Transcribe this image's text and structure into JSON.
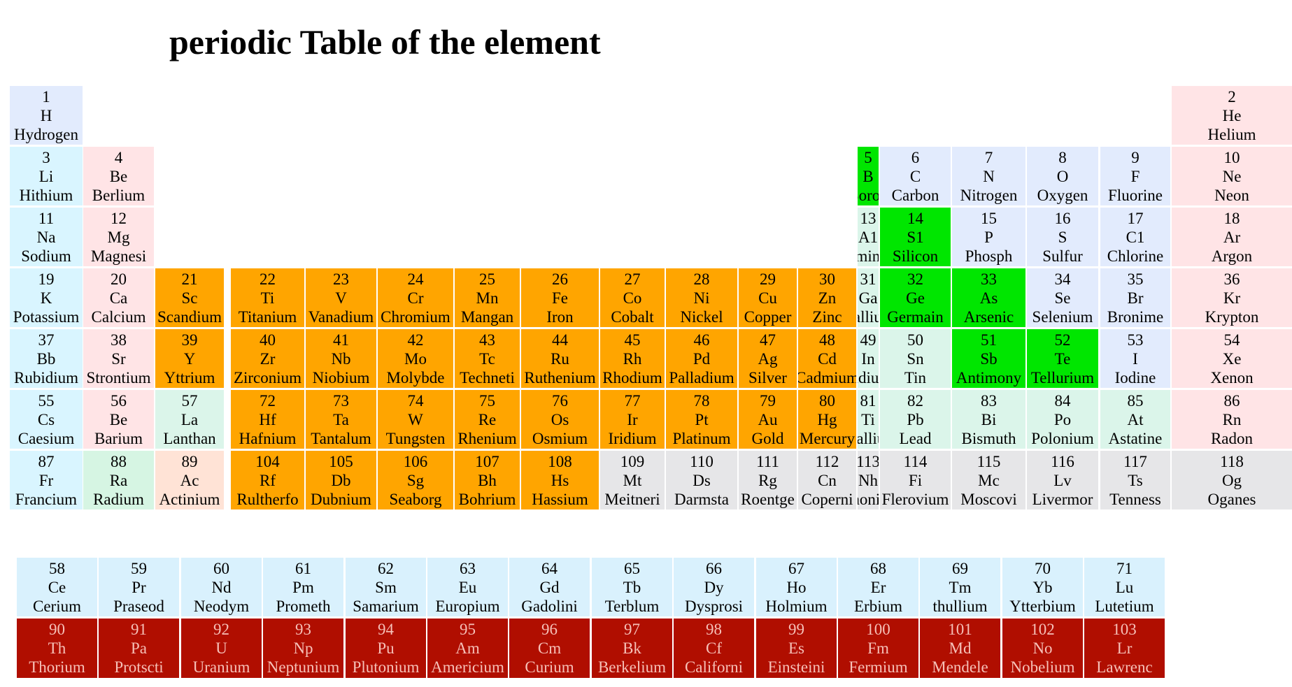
{
  "title": "periodic Table of the element",
  "colors": {
    "transition": "#ffa500",
    "metalloid": "#00e600",
    "alkali": "#d9f5ff",
    "alkaline_earth": "#ffe4e6",
    "nonmetal": "#e2ebfd",
    "noble_gas": "#ffe4e6",
    "post_transition": "#dbf5ea",
    "radium": "#d6f5e3",
    "lanthanum": "#dbf5ea",
    "actinium": "#ffe3d6",
    "unknown": "#e6e6e8",
    "lanthanide": "#d9f1fd",
    "actinide": "#b00e00"
  },
  "elements": [
    {
      "n": "1",
      "sym": "H",
      "name": "Hydrogen",
      "row": 1,
      "col": 1,
      "cat": "nonmetal"
    },
    {
      "n": "2",
      "sym": "He",
      "name": "Helium",
      "row": 1,
      "col": 18,
      "cat": "noble_gas"
    },
    {
      "n": "3",
      "sym": "Li",
      "name": "Hithium",
      "row": 2,
      "col": 1,
      "cat": "alkali"
    },
    {
      "n": "4",
      "sym": "Be",
      "name": "Berlium",
      "row": 2,
      "col": 2,
      "cat": "alkaline_earth"
    },
    {
      "n": "5",
      "sym": "B",
      "name": "Boron",
      "row": 2,
      "col": 13,
      "cat": "metalloid"
    },
    {
      "n": "6",
      "sym": "C",
      "name": "Carbon",
      "row": 2,
      "col": 14,
      "cat": "nonmetal"
    },
    {
      "n": "7",
      "sym": "N",
      "name": "Nitrogen",
      "row": 2,
      "col": 15,
      "cat": "nonmetal"
    },
    {
      "n": "8",
      "sym": "O",
      "name": "Oxygen",
      "row": 2,
      "col": 16,
      "cat": "nonmetal"
    },
    {
      "n": "9",
      "sym": "F",
      "name": "Fluorine",
      "row": 2,
      "col": 17,
      "cat": "nonmetal"
    },
    {
      "n": "10",
      "sym": "Ne",
      "name": "Neon",
      "row": 2,
      "col": 18,
      "cat": "noble_gas"
    },
    {
      "n": "11",
      "sym": "Na",
      "name": "Sodium",
      "row": 3,
      "col": 1,
      "cat": "alkali"
    },
    {
      "n": "12",
      "sym": "Mg",
      "name": "Magnesi",
      "row": 3,
      "col": 2,
      "cat": "alkaline_earth"
    },
    {
      "n": "13",
      "sym": "A1",
      "name": "Aluminium",
      "row": 3,
      "col": 13,
      "cat": "post_transition"
    },
    {
      "n": "14",
      "sym": "S1",
      "name": "Silicon",
      "row": 3,
      "col": 14,
      "cat": "metalloid"
    },
    {
      "n": "15",
      "sym": "P",
      "name": "Phosph",
      "row": 3,
      "col": 15,
      "cat": "nonmetal"
    },
    {
      "n": "16",
      "sym": "S",
      "name": "Sulfur",
      "row": 3,
      "col": 16,
      "cat": "nonmetal"
    },
    {
      "n": "17",
      "sym": "C1",
      "name": "Chlorine",
      "row": 3,
      "col": 17,
      "cat": "nonmetal"
    },
    {
      "n": "18",
      "sym": "Ar",
      "name": "Argon",
      "row": 3,
      "col": 18,
      "cat": "noble_gas"
    },
    {
      "n": "19",
      "sym": "K",
      "name": "Potassium",
      "row": 4,
      "col": 1,
      "cat": "alkali"
    },
    {
      "n": "20",
      "sym": "Ca",
      "name": "Calcium",
      "row": 4,
      "col": 2,
      "cat": "alkaline_earth"
    },
    {
      "n": "21",
      "sym": "Sc",
      "name": "Scandium",
      "row": 4,
      "col": 3,
      "cat": "transition"
    },
    {
      "n": "22",
      "sym": "Ti",
      "name": "Titanium",
      "row": 4,
      "col": 4,
      "cat": "transition"
    },
    {
      "n": "23",
      "sym": "V",
      "name": "Vanadium",
      "row": 4,
      "col": 5,
      "cat": "transition"
    },
    {
      "n": "24",
      "sym": "Cr",
      "name": "Chromium",
      "row": 4,
      "col": 6,
      "cat": "transition"
    },
    {
      "n": "25",
      "sym": "Mn",
      "name": "Mangan",
      "row": 4,
      "col": 7,
      "cat": "transition"
    },
    {
      "n": "26",
      "sym": "Fe",
      "name": "Iron",
      "row": 4,
      "col": 8,
      "cat": "transition"
    },
    {
      "n": "27",
      "sym": "Co",
      "name": "Cobalt",
      "row": 4,
      "col": 9,
      "cat": "transition"
    },
    {
      "n": "28",
      "sym": "Ni",
      "name": "Nickel",
      "row": 4,
      "col": 10,
      "cat": "transition"
    },
    {
      "n": "29",
      "sym": "Cu",
      "name": "Copper",
      "row": 4,
      "col": 11,
      "cat": "transition"
    },
    {
      "n": "30",
      "sym": "Zn",
      "name": "Zinc",
      "row": 4,
      "col": 12,
      "cat": "transition"
    },
    {
      "n": "31",
      "sym": "Ga",
      "name": "Gallium",
      "row": 4,
      "col": 13,
      "cat": "post_transition"
    },
    {
      "n": "32",
      "sym": "Ge",
      "name": "Germain",
      "row": 4,
      "col": 14,
      "cat": "metalloid"
    },
    {
      "n": "33",
      "sym": "As",
      "name": "Arsenic",
      "row": 4,
      "col": 15,
      "cat": "metalloid"
    },
    {
      "n": "34",
      "sym": "Se",
      "name": "Selenium",
      "row": 4,
      "col": 16,
      "cat": "nonmetal"
    },
    {
      "n": "35",
      "sym": "Br",
      "name": "Bronime",
      "row": 4,
      "col": 17,
      "cat": "nonmetal"
    },
    {
      "n": "36",
      "sym": "Kr",
      "name": "Krypton",
      "row": 4,
      "col": 18,
      "cat": "noble_gas"
    },
    {
      "n": "37",
      "sym": "Bb",
      "name": "Rubidium",
      "row": 5,
      "col": 1,
      "cat": "alkali"
    },
    {
      "n": "38",
      "sym": "Sr",
      "name": "Strontium",
      "row": 5,
      "col": 2,
      "cat": "alkaline_earth"
    },
    {
      "n": "39",
      "sym": "Y",
      "name": "Yttrium",
      "row": 5,
      "col": 3,
      "cat": "transition"
    },
    {
      "n": "40",
      "sym": "Zr",
      "name": "Zirconium",
      "row": 5,
      "col": 4,
      "cat": "transition"
    },
    {
      "n": "41",
      "sym": "Nb",
      "name": "Niobium",
      "row": 5,
      "col": 5,
      "cat": "transition"
    },
    {
      "n": "42",
      "sym": "Mo",
      "name": "Molybde",
      "row": 5,
      "col": 6,
      "cat": "transition"
    },
    {
      "n": "43",
      "sym": "Tc",
      "name": "Techneti",
      "row": 5,
      "col": 7,
      "cat": "transition"
    },
    {
      "n": "44",
      "sym": "Ru",
      "name": "Ruthenium",
      "row": 5,
      "col": 8,
      "cat": "transition"
    },
    {
      "n": "45",
      "sym": "Rh",
      "name": "Rhodium",
      "row": 5,
      "col": 9,
      "cat": "transition"
    },
    {
      "n": "46",
      "sym": "Pd",
      "name": "Palladium",
      "row": 5,
      "col": 10,
      "cat": "transition"
    },
    {
      "n": "47",
      "sym": "Ag",
      "name": "Silver",
      "row": 5,
      "col": 11,
      "cat": "transition"
    },
    {
      "n": "48",
      "sym": "Cd",
      "name": "Cadmium",
      "row": 5,
      "col": 12,
      "cat": "transition"
    },
    {
      "n": "49",
      "sym": "In",
      "name": "Indium",
      "row": 5,
      "col": 13,
      "cat": "post_transition"
    },
    {
      "n": "50",
      "sym": "Sn",
      "name": "Tin",
      "row": 5,
      "col": 14,
      "cat": "post_transition"
    },
    {
      "n": "51",
      "sym": "Sb",
      "name": "Antimony",
      "row": 5,
      "col": 15,
      "cat": "metalloid"
    },
    {
      "n": "52",
      "sym": "Te",
      "name": "Tellurium",
      "row": 5,
      "col": 16,
      "cat": "metalloid"
    },
    {
      "n": "53",
      "sym": "I",
      "name": "Iodine",
      "row": 5,
      "col": 17,
      "cat": "nonmetal"
    },
    {
      "n": "54",
      "sym": "Xe",
      "name": "Xenon",
      "row": 5,
      "col": 18,
      "cat": "noble_gas"
    },
    {
      "n": "55",
      "sym": "Cs",
      "name": "Caesium",
      "row": 6,
      "col": 1,
      "cat": "alkali"
    },
    {
      "n": "56",
      "sym": "Be",
      "name": "Barium",
      "row": 6,
      "col": 2,
      "cat": "alkaline_earth"
    },
    {
      "n": "57",
      "sym": "La",
      "name": "Lanthan",
      "row": 6,
      "col": 3,
      "cat": "lanthanum"
    },
    {
      "n": "72",
      "sym": "Hf",
      "name": "Hafnium",
      "row": 6,
      "col": 4,
      "cat": "transition"
    },
    {
      "n": "73",
      "sym": "Ta",
      "name": "Tantalum",
      "row": 6,
      "col": 5,
      "cat": "transition"
    },
    {
      "n": "74",
      "sym": "W",
      "name": "Tungsten",
      "row": 6,
      "col": 6,
      "cat": "transition"
    },
    {
      "n": "75",
      "sym": "Re",
      "name": "Rhenium",
      "row": 6,
      "col": 7,
      "cat": "transition"
    },
    {
      "n": "76",
      "sym": "Os",
      "name": "Osmium",
      "row": 6,
      "col": 8,
      "cat": "transition"
    },
    {
      "n": "77",
      "sym": "Ir",
      "name": "Iridium",
      "row": 6,
      "col": 9,
      "cat": "transition"
    },
    {
      "n": "78",
      "sym": "Pt",
      "name": "Platinum",
      "row": 6,
      "col": 10,
      "cat": "transition"
    },
    {
      "n": "79",
      "sym": "Au",
      "name": "Gold",
      "row": 6,
      "col": 11,
      "cat": "transition"
    },
    {
      "n": "80",
      "sym": "Hg",
      "name": "Mercury",
      "row": 6,
      "col": 12,
      "cat": "transition"
    },
    {
      "n": "81",
      "sym": "Ti",
      "name": "Thallium",
      "row": 6,
      "col": 13,
      "cat": "post_transition"
    },
    {
      "n": "82",
      "sym": "Pb",
      "name": "Lead",
      "row": 6,
      "col": 14,
      "cat": "post_transition"
    },
    {
      "n": "83",
      "sym": "Bi",
      "name": "Bismuth",
      "row": 6,
      "col": 15,
      "cat": "post_transition"
    },
    {
      "n": "84",
      "sym": "Po",
      "name": "Polonium",
      "row": 6,
      "col": 16,
      "cat": "post_transition"
    },
    {
      "n": "85",
      "sym": "At",
      "name": "Astatine",
      "row": 6,
      "col": 17,
      "cat": "post_transition"
    },
    {
      "n": "86",
      "sym": "Rn",
      "name": "Radon",
      "row": 6,
      "col": 18,
      "cat": "noble_gas"
    },
    {
      "n": "87",
      "sym": "Fr",
      "name": "Francium",
      "row": 7,
      "col": 1,
      "cat": "alkali"
    },
    {
      "n": "88",
      "sym": "Ra",
      "name": "Radium",
      "row": 7,
      "col": 2,
      "cat": "radium"
    },
    {
      "n": "89",
      "sym": "Ac",
      "name": "Actinium",
      "row": 7,
      "col": 3,
      "cat": "actinium"
    },
    {
      "n": "104",
      "sym": "Rf",
      "name": "Rultherfo",
      "row": 7,
      "col": 4,
      "cat": "transition"
    },
    {
      "n": "105",
      "sym": "Db",
      "name": "Dubnium",
      "row": 7,
      "col": 5,
      "cat": "transition"
    },
    {
      "n": "106",
      "sym": "Sg",
      "name": "Seaborg",
      "row": 7,
      "col": 6,
      "cat": "transition"
    },
    {
      "n": "107",
      "sym": "Bh",
      "name": "Bohrium",
      "row": 7,
      "col": 7,
      "cat": "transition"
    },
    {
      "n": "108",
      "sym": "Hs",
      "name": "Hassium",
      "row": 7,
      "col": 8,
      "cat": "transition"
    },
    {
      "n": "109",
      "sym": "Mt",
      "name": "Meitneri",
      "row": 7,
      "col": 9,
      "cat": "unknown"
    },
    {
      "n": "110",
      "sym": "Ds",
      "name": "Darmsta",
      "row": 7,
      "col": 10,
      "cat": "unknown"
    },
    {
      "n": "111",
      "sym": "Rg",
      "name": "Roentge",
      "row": 7,
      "col": 11,
      "cat": "unknown"
    },
    {
      "n": "112",
      "sym": "Cn",
      "name": "Coperni",
      "row": 7,
      "col": 12,
      "cat": "unknown"
    },
    {
      "n": "113",
      "sym": "Nh",
      "name": "Nihonium",
      "row": 7,
      "col": 13,
      "cat": "unknown"
    },
    {
      "n": "114",
      "sym": "Fi",
      "name": "Flerovium",
      "row": 7,
      "col": 14,
      "cat": "unknown"
    },
    {
      "n": "115",
      "sym": "Mc",
      "name": "Moscovi",
      "row": 7,
      "col": 15,
      "cat": "unknown"
    },
    {
      "n": "116",
      "sym": "Lv",
      "name": "Livermor",
      "row": 7,
      "col": 16,
      "cat": "unknown"
    },
    {
      "n": "117",
      "sym": "Ts",
      "name": "Tenness",
      "row": 7,
      "col": 17,
      "cat": "unknown"
    },
    {
      "n": "118",
      "sym": "Og",
      "name": "Oganes",
      "row": 7,
      "col": 18,
      "cat": "unknown"
    }
  ],
  "lanthanides": [
    {
      "n": "58",
      "sym": "Ce",
      "name": "Cerium"
    },
    {
      "n": "59",
      "sym": "Pr",
      "name": "Praseod"
    },
    {
      "n": "60",
      "sym": "Nd",
      "name": "Neodym"
    },
    {
      "n": "61",
      "sym": "Pm",
      "name": "Prometh"
    },
    {
      "n": "62",
      "sym": "Sm",
      "name": "Samarium"
    },
    {
      "n": "63",
      "sym": "Eu",
      "name": "Europium"
    },
    {
      "n": "64",
      "sym": "Gd",
      "name": "Gadolini"
    },
    {
      "n": "65",
      "sym": "Tb",
      "name": "Terblum"
    },
    {
      "n": "66",
      "sym": "Dy",
      "name": "Dysprosi"
    },
    {
      "n": "67",
      "sym": "Ho",
      "name": "Holmium"
    },
    {
      "n": "68",
      "sym": "Er",
      "name": "Erbium"
    },
    {
      "n": "69",
      "sym": "Tm",
      "name": "thullium"
    },
    {
      "n": "70",
      "sym": "Yb",
      "name": "Ytterbium"
    },
    {
      "n": "71",
      "sym": "Lu",
      "name": "Lutetium"
    }
  ],
  "actinides": [
    {
      "n": "90",
      "sym": "Th",
      "name": "Thorium"
    },
    {
      "n": "91",
      "sym": "Pa",
      "name": "Protscti"
    },
    {
      "n": "92",
      "sym": "U",
      "name": "Uranium"
    },
    {
      "n": "93",
      "sym": "Np",
      "name": "Neptunium"
    },
    {
      "n": "94",
      "sym": "Pu",
      "name": "Plutonium"
    },
    {
      "n": "95",
      "sym": "Am",
      "name": "Americium"
    },
    {
      "n": "96",
      "sym": "Cm",
      "name": "Curium"
    },
    {
      "n": "97",
      "sym": "Bk",
      "name": "Berkelium"
    },
    {
      "n": "98",
      "sym": "Cf",
      "name": "Californi"
    },
    {
      "n": "99",
      "sym": "Es",
      "name": "Einsteini"
    },
    {
      "n": "100",
      "sym": "Fm",
      "name": "Fermium"
    },
    {
      "n": "101",
      "sym": "Md",
      "name": "Mendele"
    },
    {
      "n": "102",
      "sym": "No",
      "name": "Nobelium"
    },
    {
      "n": "103",
      "sym": "Lr",
      "name": "Lawrenc"
    }
  ]
}
